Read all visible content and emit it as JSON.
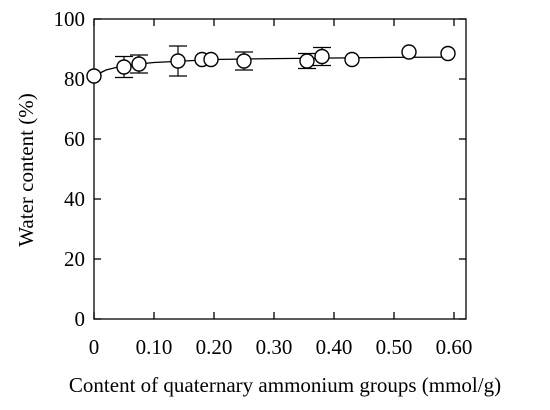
{
  "chart_data": {
    "type": "scatter",
    "xlabel": "Content of quaternary ammonium groups (mmol/g)",
    "ylabel": "Water content (%)",
    "xlim": [
      0,
      0.62
    ],
    "ylim": [
      0,
      100
    ],
    "x_ticks": [
      0,
      0.1,
      0.2,
      0.3,
      0.4,
      0.5,
      0.6
    ],
    "x_tick_labels": [
      "0",
      "0.10",
      "0.20",
      "0.30",
      "0.40",
      "0.50",
      "0.60"
    ],
    "y_ticks": [
      0,
      20,
      40,
      60,
      80,
      100
    ],
    "y_tick_labels": [
      "0",
      "20",
      "40",
      "60",
      "80",
      "100"
    ],
    "grid": false,
    "series": [
      {
        "marker": "open-circle",
        "x": [
          0.0,
          0.05,
          0.075,
          0.14,
          0.18,
          0.195,
          0.25,
          0.355,
          0.38,
          0.43,
          0.525,
          0.59
        ],
        "y": [
          81,
          84,
          85,
          86,
          86.5,
          86.5,
          86,
          86,
          87.5,
          86.5,
          89,
          88.5
        ],
        "err": [
          0,
          3.5,
          3,
          5,
          0,
          0,
          3,
          2.5,
          3,
          0,
          0,
          0
        ]
      }
    ],
    "trend_line": {
      "x": [
        0.0,
        0.02,
        0.05,
        0.1,
        0.15,
        0.2,
        0.3,
        0.4,
        0.5,
        0.6
      ],
      "y": [
        81,
        83,
        84.5,
        85.5,
        86,
        86.5,
        86.8,
        87,
        87.2,
        87.3
      ]
    }
  }
}
